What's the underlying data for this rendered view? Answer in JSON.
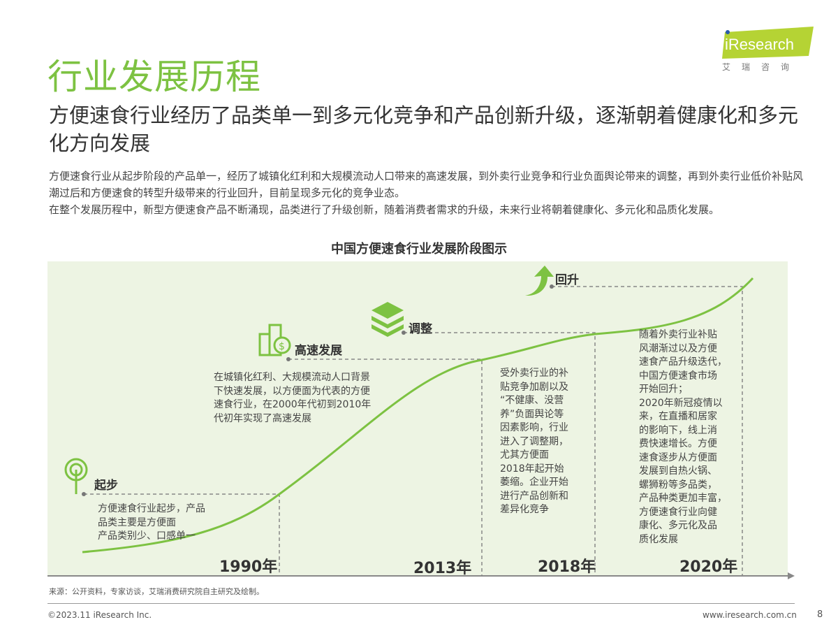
{
  "logo": {
    "brand": "iResearch",
    "sub": "艾瑞咨询"
  },
  "title": "行业发展历程",
  "subtitle": "方便速食行业经历了品类单一到多元化竞争和产品创新升级，逐渐朝着健康化和多元化方向发展",
  "body": [
    "方便速食行业从起步阶段的产品单一，经历了城镇化红利和大规模流动人口带来的高速发展，到外卖行业竞争和行业负面舆论带来的调整，再到外卖行业低价补贴风潮过后和方便速食的转型升级带来的行业回升，目前呈现多元化的竞争业态。",
    "在整个发展历程中，新型方便速食产品不断涌现，品类进行了升级创新，随着消费者需求的升级，未来行业将朝着健康化、多元化和品质化发展。"
  ],
  "diagram": {
    "title": "中国方便速食行业发展阶段图示",
    "accent": "#7dc242",
    "stages": [
      {
        "name": "起步",
        "icon": "signal-tower-icon",
        "year": "1990年",
        "desc": [
          "方便速食行业起步，产品",
          "品类主要是方便面",
          "产品类别少、口感单一"
        ]
      },
      {
        "name": "高速发展",
        "icon": "building-dollar-icon",
        "year": "2013年",
        "desc": [
          "在城镇化红利、大规模流动人口背景",
          "下快速发展，以方便面为代表的方便",
          "速食行业，在2000年代初到2010年",
          "代初年实现了高速发展"
        ]
      },
      {
        "name": "调整",
        "icon": "layers-icon",
        "year": "2018年",
        "desc": [
          "受外卖行业的补",
          "贴竞争加剧以及",
          "“不健康、没营",
          "养”负面舆论等",
          "因素影响，行业",
          "进入了调整期，",
          "尤其方便面",
          "2018年起开始",
          "萎缩。企业开始",
          "进行产品创新和",
          "差异化竞争"
        ]
      },
      {
        "name": "回升",
        "icon": "up-arrow-icon",
        "year": "2020年",
        "desc": [
          "随着外卖行业补贴",
          "风潮渐过以及方便",
          "速食产品升级迭代，",
          "中国方便速食市场",
          "开始回升；",
          "2020年新冠疫情以",
          "来，在直播和居家",
          "的影响下，线上消",
          "费快速增长。方便",
          "速食逐步从方便面",
          "发展到自热火锅、",
          "螺狮粉等多品类，",
          "产品种类更加丰富，",
          "方便速食行业向健",
          "康化、多元化及品",
          "质化发展"
        ]
      }
    ]
  },
  "footer": {
    "source": "来源：公开资料，专家访谈，艾瑞消费研究院自主研究及绘制。",
    "copyright": "©2023.11 iResearch Inc.",
    "website": "www.iresearch.com.cn",
    "page": "8"
  }
}
